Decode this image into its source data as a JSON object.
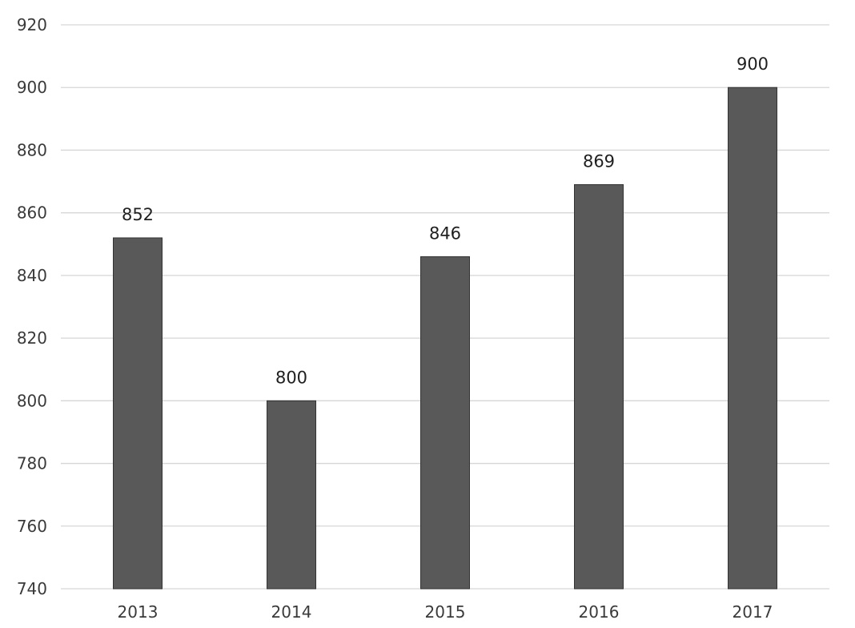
{
  "chart_data": {
    "type": "bar",
    "categories": [
      "2013",
      "2014",
      "2015",
      "2016",
      "2017"
    ],
    "values": [
      852,
      800,
      846,
      869,
      900
    ],
    "title": "",
    "xlabel": "",
    "ylabel": "",
    "ylim": [
      740,
      920
    ],
    "yticks": [
      740,
      760,
      780,
      800,
      820,
      840,
      860,
      880,
      900,
      920
    ],
    "grid": true,
    "data_labels": true,
    "bar_color": "#595959",
    "grid_color": "#d6d6d6"
  }
}
